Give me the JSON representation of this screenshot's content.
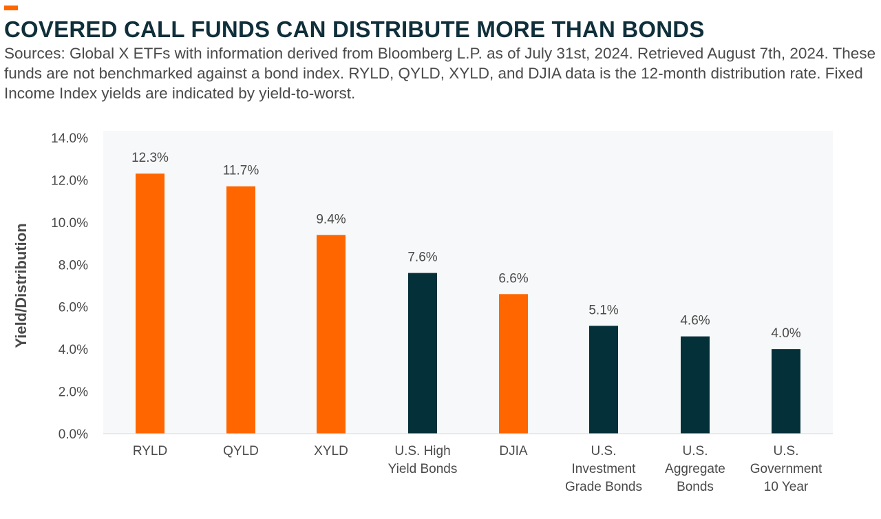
{
  "title": "COVERED CALL FUNDS CAN DISTRIBUTE MORE THAN BONDS",
  "subtitle": "Sources: Global X ETFs with information derived from Bloomberg L.P. as of July 31st, 2024. Retrieved August 7th, 2024. These funds are not benchmarked against a bond index. RYLD, QYLD, XYLD, and DJIA data is the 12-month distribution rate. Fixed Income Index yields are indicated by yield-to-worst.",
  "colors": {
    "accent": "#ff6600",
    "covered_call": "#ff6600",
    "bond_index": "#04303a",
    "plot_background": "#f7f8f9",
    "title": "#0f2f3a"
  },
  "chart_data": {
    "type": "bar",
    "ylabel": "Yield/Distribution",
    "ylim": [
      0,
      14
    ],
    "yticks": [
      "0.0%",
      "2.0%",
      "4.0%",
      "6.0%",
      "8.0%",
      "10.0%",
      "12.0%",
      "14.0%"
    ],
    "grid": false,
    "categories": [
      [
        "RYLD"
      ],
      [
        "QYLD"
      ],
      [
        "XYLD"
      ],
      [
        "U.S. High",
        "Yield Bonds"
      ],
      [
        "DJIA"
      ],
      [
        "U.S.",
        "Investment",
        "Grade Bonds"
      ],
      [
        "U.S.",
        "Aggregate",
        "Bonds"
      ],
      [
        "U.S.",
        "Government",
        "10 Year"
      ]
    ],
    "values": [
      12.3,
      11.7,
      9.4,
      7.6,
      6.6,
      5.1,
      4.6,
      4.0
    ],
    "value_labels": [
      "12.3%",
      "11.7%",
      "9.4%",
      "7.6%",
      "6.6%",
      "5.1%",
      "4.6%",
      "4.0%"
    ],
    "bar_colors": [
      "#ff6600",
      "#ff6600",
      "#ff6600",
      "#04303a",
      "#ff6600",
      "#04303a",
      "#04303a",
      "#04303a"
    ]
  }
}
